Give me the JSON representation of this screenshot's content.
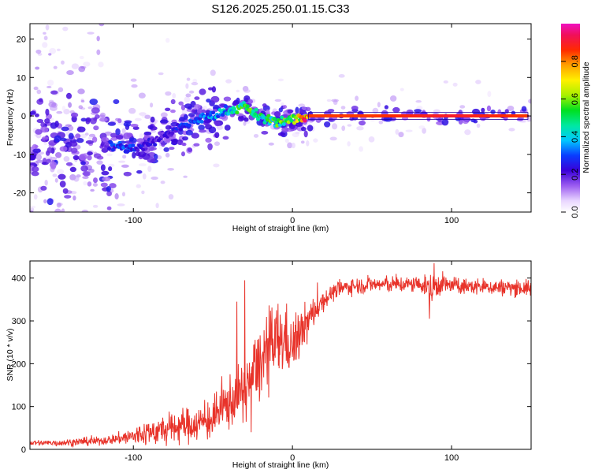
{
  "title": "S126.2025.250.01.15.C33",
  "colors": {
    "snr_line": "#e8332a",
    "axis": "#000000"
  },
  "chart_data": [
    {
      "type": "heatmap",
      "xlabel": "Height of straight line (km)",
      "ylabel": "Frequency (Hz)",
      "xlim": [
        -165,
        150
      ],
      "ylim": [
        -25,
        24
      ],
      "xticks": [
        -100,
        0,
        100
      ],
      "yticks": [
        -20,
        -10,
        0,
        10,
        20
      ],
      "colorbar": {
        "label": "Normalized spectral amplitude",
        "range": [
          0,
          1
        ],
        "ticks": [
          0.0,
          0.2,
          0.4,
          0.6,
          0.8
        ],
        "tick_labels": [
          "0.0",
          "0.2",
          "0.4",
          "0.6",
          "0.8"
        ],
        "colormap": "rainbow (white→purple→blue→cyan→green→yellow→orange→red→magenta)"
      },
      "ridge": {
        "description": "peak frequency ridge vs height",
        "x": [
          -120,
          -110,
          -100,
          -90,
          -80,
          -70,
          -60,
          -50,
          -40,
          -30,
          -20,
          -10,
          0,
          10,
          50,
          100,
          148
        ],
        "y": [
          -7,
          -8,
          -8.5,
          -7,
          -5,
          -3,
          -1,
          0,
          1.5,
          2.5,
          -0.5,
          -1.5,
          -1,
          0,
          0,
          0,
          0
        ],
        "amplitude": [
          0.15,
          0.3,
          0.25,
          0.2,
          0.2,
          0.25,
          0.3,
          0.35,
          0.4,
          0.5,
          0.45,
          0.5,
          0.55,
          0.85,
          0.85,
          0.9,
          0.85
        ]
      }
    },
    {
      "type": "line",
      "xlabel": "Height of straight line (km)",
      "ylabel": "SNR (10 * v/v)",
      "xlim": [
        -165,
        150
      ],
      "ylim": [
        0,
        440
      ],
      "xticks": [
        -100,
        0,
        100
      ],
      "yticks": [
        0,
        100,
        200,
        300,
        400
      ],
      "series": [
        {
          "x": [
            -165,
            -150,
            -130,
            -120,
            -110,
            -100,
            -90,
            -80,
            -70,
            -60,
            -50,
            -45,
            -40,
            -35,
            -30,
            -25,
            -20,
            -15,
            -10,
            -5,
            0,
            5,
            10,
            15,
            20,
            25,
            30,
            35,
            40,
            50,
            60,
            70,
            80,
            85,
            88,
            90,
            95,
            100,
            110,
            120,
            130,
            140,
            150
          ],
          "y": [
            15,
            15,
            18,
            20,
            25,
            30,
            40,
            45,
            55,
            60,
            70,
            90,
            110,
            120,
            140,
            180,
            200,
            230,
            250,
            260,
            240,
            270,
            300,
            330,
            350,
            365,
            375,
            380,
            382,
            385,
            385,
            385,
            385,
            380,
            370,
            385,
            385,
            383,
            380,
            380,
            378,
            378,
            375
          ],
          "noise": [
            4,
            5,
            6,
            6,
            8,
            15,
            20,
            22,
            25,
            25,
            30,
            35,
            40,
            40,
            45,
            50,
            55,
            60,
            60,
            50,
            40,
            35,
            30,
            20,
            15,
            12,
            12,
            12,
            12,
            12,
            12,
            12,
            12,
            15,
            30,
            20,
            15,
            12,
            12,
            12,
            12,
            12,
            12
          ],
          "spikes": [
            {
              "x": -30,
              "y": 395
            },
            {
              "x": -35,
              "y": 345
            },
            {
              "x": 89,
              "y": 435
            },
            {
              "x": 86,
              "y": 305
            },
            {
              "x": -26,
              "y": 40
            }
          ]
        }
      ]
    }
  ]
}
